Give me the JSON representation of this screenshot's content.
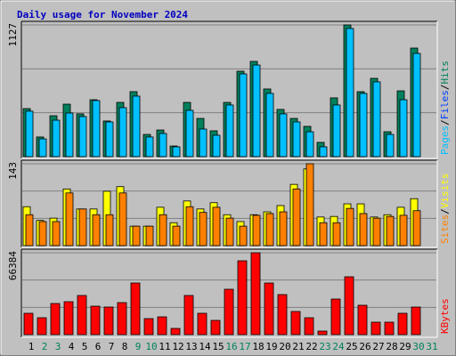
{
  "title": "Daily usage for November 2024",
  "separator": "/",
  "chart_data": [
    {
      "type": "bar",
      "ylim": [
        0,
        1127
      ],
      "yticks": [
        1127
      ],
      "series": [
        {
          "name": "Hits",
          "color": "#00805c",
          "values": [
            411,
            168,
            350,
            449,
            366,
            487,
            305,
            464,
            556,
            190,
            228,
            91,
            464,
            327,
            221,
            464,
            731,
            815,
            579,
            404,
            327,
            259,
            122,
            503,
            1127,
            556,
            670,
            213,
            563,
            929,
            0
          ]
        },
        {
          "name": "Pages",
          "color": "#00c0ff",
          "values": [
            389,
            152,
            312,
            373,
            343,
            480,
            297,
            419,
            518,
            168,
            198,
            84,
            396,
            236,
            183,
            442,
            708,
            784,
            541,
            366,
            297,
            213,
            84,
            442,
            1097,
            541,
            640,
            190,
            487,
            883,
            0
          ]
        }
      ],
      "legend_extra": {
        "name": "Files",
        "color": "#0040ff"
      }
    },
    {
      "type": "bar",
      "ylim": [
        0,
        143
      ],
      "yticks": [
        143
      ],
      "series": [
        {
          "name": "Visits",
          "color": "#ffff00",
          "values": [
            68,
            44,
            48,
            99,
            64,
            64,
            95,
            103,
            34,
            34,
            67,
            40,
            78,
            64,
            75,
            54,
            42,
            54,
            59,
            70,
            107,
            134,
            50,
            51,
            73,
            73,
            50,
            54,
            67,
            82,
            0
          ]
        },
        {
          "name": "Sites",
          "color": "#ff8000",
          "values": [
            54,
            42,
            42,
            92,
            64,
            54,
            54,
            92,
            34,
            34,
            54,
            34,
            68,
            58,
            67,
            48,
            34,
            53,
            56,
            59,
            99,
            143,
            40,
            40,
            65,
            56,
            48,
            51,
            53,
            61,
            0
          ]
        }
      ]
    },
    {
      "type": "bar",
      "ylim": [
        0,
        66384
      ],
      "yticks": [
        66384
      ],
      "categories": [
        "1",
        "2",
        "3",
        "4",
        "5",
        "6",
        "7",
        "8",
        "9",
        "10",
        "11",
        "12",
        "13",
        "14",
        "15",
        "16",
        "17",
        "18",
        "19",
        "20",
        "21",
        "22",
        "23",
        "24",
        "25",
        "26",
        "27",
        "28",
        "29",
        "30",
        "31"
      ],
      "weekend": [
        false,
        true,
        true,
        false,
        false,
        false,
        false,
        false,
        true,
        true,
        false,
        false,
        false,
        false,
        false,
        true,
        true,
        false,
        false,
        false,
        false,
        false,
        true,
        true,
        false,
        false,
        false,
        false,
        false,
        true,
        true
      ],
      "weekend_color": "#00805c",
      "series": [
        {
          "name": "KBytes",
          "color": "#ff0000",
          "values": [
            17318,
            13710,
            25255,
            26698,
            31749,
            23090,
            22368,
            25976,
            41851,
            12988,
            14431,
            5051,
            31749,
            17318,
            11545,
            36800,
            59890,
            66384,
            41851,
            32470,
            18761,
            13710,
            2886,
            28863,
            46902,
            23812,
            10102,
            10102,
            17318,
            22368,
            0
          ]
        }
      ]
    }
  ]
}
